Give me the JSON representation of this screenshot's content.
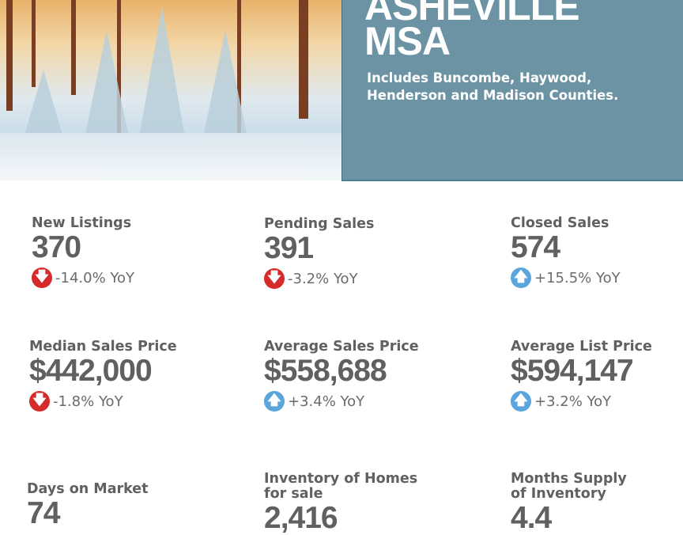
{
  "header": {
    "title_line1": "ASHEVILLE",
    "title_line2": "MSA",
    "subtitle_line1": "Includes Buncombe, Haywood,",
    "subtitle_line2": "Henderson and Madison Counties."
  },
  "colors": {
    "panel": "#6c93a4",
    "down": "#d52b2b",
    "up": "#5aa6dc",
    "text": "#5f6062"
  },
  "stats": [
    {
      "label1": "New Listings",
      "label2": "",
      "value": "370",
      "yoy": "-14.0% YoY",
      "direction": "down"
    },
    {
      "label1": "Pending Sales",
      "label2": "",
      "value": "391",
      "yoy": "-3.2% YoY",
      "direction": "down"
    },
    {
      "label1": "Closed Sales",
      "label2": "",
      "value": "574",
      "yoy": "+15.5% YoY",
      "direction": "up"
    },
    {
      "label1": "Median Sales Price",
      "label2": "",
      "value": "$442,000",
      "yoy": "-1.8% YoY",
      "direction": "down"
    },
    {
      "label1": "Average Sales Price",
      "label2": "",
      "value": "$558,688",
      "yoy": "+3.4% YoY",
      "direction": "up"
    },
    {
      "label1": "Average List Price",
      "label2": "",
      "value": "$594,147",
      "yoy": "+3.2% YoY",
      "direction": "up"
    },
    {
      "label1": "Days on Market",
      "label2": "",
      "value": "74"
    },
    {
      "label1": "Inventory of Homes",
      "label2": "for sale",
      "value": "2,416"
    },
    {
      "label1": "Months Supply",
      "label2": "of Inventory",
      "value": "4.4"
    }
  ]
}
